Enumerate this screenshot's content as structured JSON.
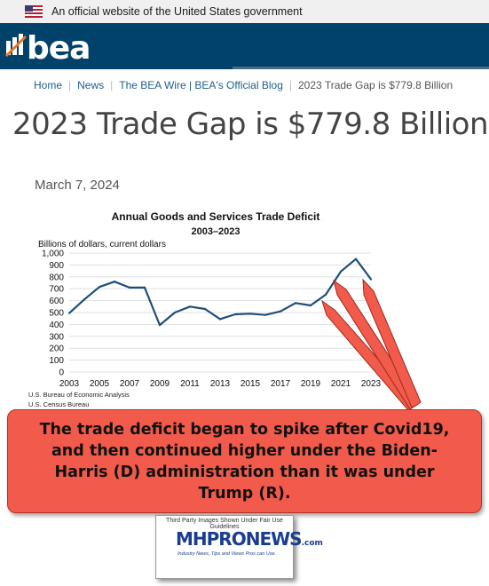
{
  "gov_banner": {
    "text": "An official website of the United States government"
  },
  "header": {
    "logo_text": "bea"
  },
  "breadcrumb": {
    "home": "Home",
    "news": "News",
    "wire": "The BEA Wire | BEA's Official Blog",
    "current": "2023 Trade Gap is $779.8 Billion"
  },
  "article": {
    "title": "2023 Trade Gap is $779.8 Billion",
    "date": "March 7, 2024"
  },
  "chart_data": {
    "type": "line",
    "title": "Annual Goods and Services Trade Deficit",
    "subtitle": "2003–2023",
    "ylabel": "Billions of dollars, current dollars",
    "x": [
      2003,
      2004,
      2005,
      2006,
      2007,
      2008,
      2009,
      2010,
      2011,
      2012,
      2013,
      2014,
      2015,
      2016,
      2017,
      2018,
      2019,
      2020,
      2021,
      2022,
      2023
    ],
    "values": [
      495,
      610,
      715,
      760,
      710,
      710,
      395,
      500,
      550,
      530,
      445,
      485,
      490,
      480,
      510,
      580,
      560,
      650,
      845,
      950,
      780
    ],
    "ylim": [
      0,
      1000
    ],
    "yticks": [
      "0",
      "100",
      "200",
      "300",
      "400",
      "500",
      "600",
      "700",
      "800",
      "900",
      "1,000"
    ],
    "xticks": [
      "2003",
      "2005",
      "2007",
      "2009",
      "2011",
      "2013",
      "2015",
      "2017",
      "2019",
      "2021",
      "2023"
    ],
    "line_color": "#1f4e79",
    "grid": true,
    "sources": [
      "U.S. Bureau of Economic Analysis",
      "U.S. Census Bureau"
    ]
  },
  "callout": {
    "text": "The trade deficit began to spike after Covid19, and then continued higher under the Biden-Harris (D) administration than it was under Trump (R).",
    "color": "#f25b4b"
  },
  "badge": {
    "caption": "Third Party Images Shown Under Fair Use Guidelines",
    "brand": "MHPRONEWS",
    "domain": ".com",
    "tagline": "Industry News, Tips and Views Pros can Use."
  }
}
